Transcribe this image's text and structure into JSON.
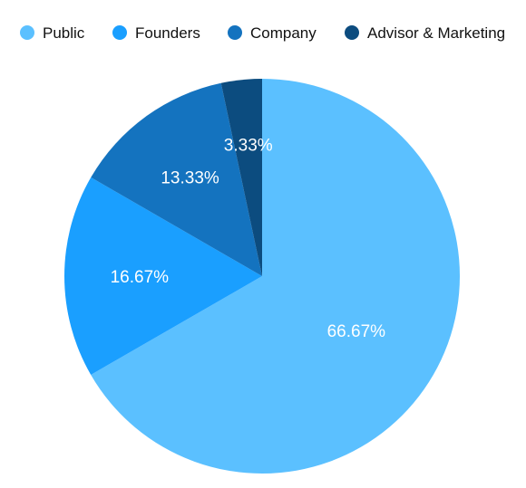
{
  "chart_data": {
    "type": "pie",
    "title": "",
    "legend_position": "top",
    "series": [
      {
        "values": [
          66.67,
          16.67,
          13.33,
          3.33
        ],
        "labels": [
          "Public",
          "Founders",
          "Company",
          "Advisor & Marketing"
        ],
        "data_labels": [
          "66.67%",
          "16.67%",
          "13.33%",
          "3.33%"
        ],
        "colors": [
          "#5BC0FF",
          "#1A9FFF",
          "#1473BF",
          "#0C4C7F"
        ]
      }
    ]
  }
}
